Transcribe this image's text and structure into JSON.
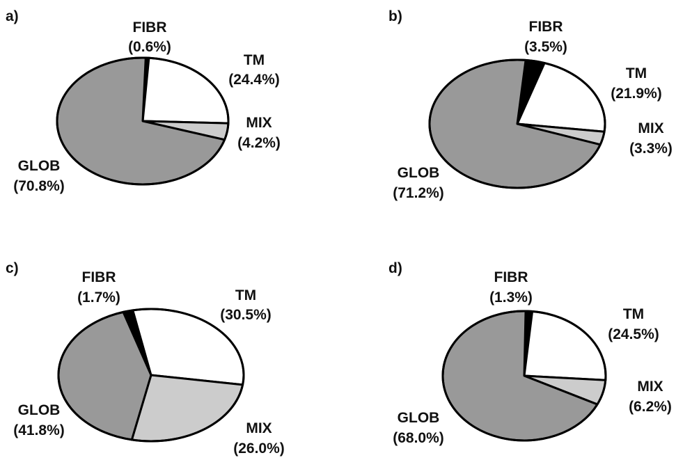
{
  "chart_data": [
    {
      "type": "pie",
      "panel": "a)",
      "slices": [
        {
          "name": "FIBR",
          "pct_label": "(0.6%)",
          "value": 0.6,
          "color": "#000000"
        },
        {
          "name": "TM",
          "pct_label": "(24.4%)",
          "value": 24.4,
          "color": "#ffffff"
        },
        {
          "name": "MIX",
          "pct_label": "(4.2%)",
          "value": 4.2,
          "color": "#cccccc"
        },
        {
          "name": "GLOB",
          "pct_label": "(70.8%)",
          "value": 70.8,
          "color": "#999999"
        }
      ]
    },
    {
      "type": "pie",
      "panel": "b)",
      "slices": [
        {
          "name": "FIBR",
          "pct_label": "(3.5%)",
          "value": 3.5,
          "color": "#000000"
        },
        {
          "name": "TM",
          "pct_label": "(21.9%)",
          "value": 21.9,
          "color": "#ffffff"
        },
        {
          "name": "MIX",
          "pct_label": "(3.3%)",
          "value": 3.3,
          "color": "#cccccc"
        },
        {
          "name": "GLOB",
          "pct_label": "(71.2%)",
          "value": 71.2,
          "color": "#999999"
        }
      ]
    },
    {
      "type": "pie",
      "panel": "c)",
      "slices": [
        {
          "name": "FIBR",
          "pct_label": "(1.7%)",
          "value": 1.7,
          "color": "#000000"
        },
        {
          "name": "TM",
          "pct_label": "(30.5%)",
          "value": 30.5,
          "color": "#ffffff"
        },
        {
          "name": "MIX",
          "pct_label": "(26.0%)",
          "value": 26.0,
          "color": "#cccccc"
        },
        {
          "name": "GLOB",
          "pct_label": "(41.8%)",
          "value": 41.8,
          "color": "#999999"
        }
      ]
    },
    {
      "type": "pie",
      "panel": "d)",
      "slices": [
        {
          "name": "FIBR",
          "pct_label": "(1.3%)",
          "value": 1.3,
          "color": "#000000"
        },
        {
          "name": "TM",
          "pct_label": "(24.5%)",
          "value": 24.5,
          "color": "#ffffff"
        },
        {
          "name": "MIX",
          "pct_label": "(6.2%)",
          "value": 6.2,
          "color": "#cccccc"
        },
        {
          "name": "GLOB",
          "pct_label": "(68.0%)",
          "value": 68.0,
          "color": "#999999"
        }
      ]
    }
  ]
}
